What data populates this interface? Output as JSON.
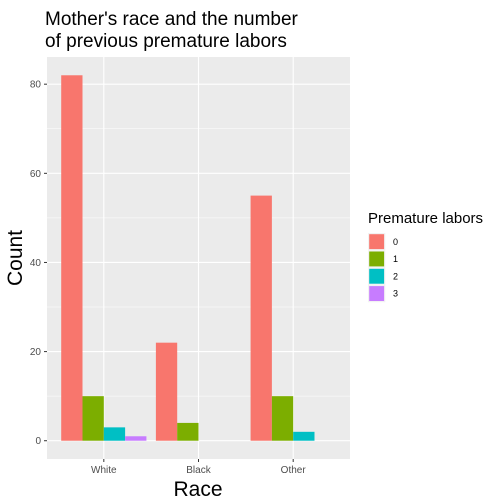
{
  "chart_data": {
    "type": "bar",
    "title_lines": [
      "Mother's race and the number",
      "of previous premature labors"
    ],
    "xlabel": "Race",
    "ylabel": "Count",
    "categories": [
      "White",
      "Black",
      "Other"
    ],
    "series": [
      {
        "name": "0",
        "color": "#F8766D",
        "values": [
          82,
          22,
          55
        ]
      },
      {
        "name": "1",
        "color": "#7CAE00",
        "values": [
          10,
          4,
          10
        ]
      },
      {
        "name": "2",
        "color": "#00BFC4",
        "values": [
          3,
          0,
          2
        ]
      },
      {
        "name": "3",
        "color": "#C77CFF",
        "values": [
          1,
          0,
          0
        ]
      }
    ],
    "ylim": [
      -4.1,
      86.1
    ],
    "yticks": [
      0,
      20,
      40,
      60,
      80
    ],
    "grid": true,
    "panel_background": "#EBEBEB",
    "legend": {
      "title": "Premature labors",
      "placement": "right"
    }
  }
}
